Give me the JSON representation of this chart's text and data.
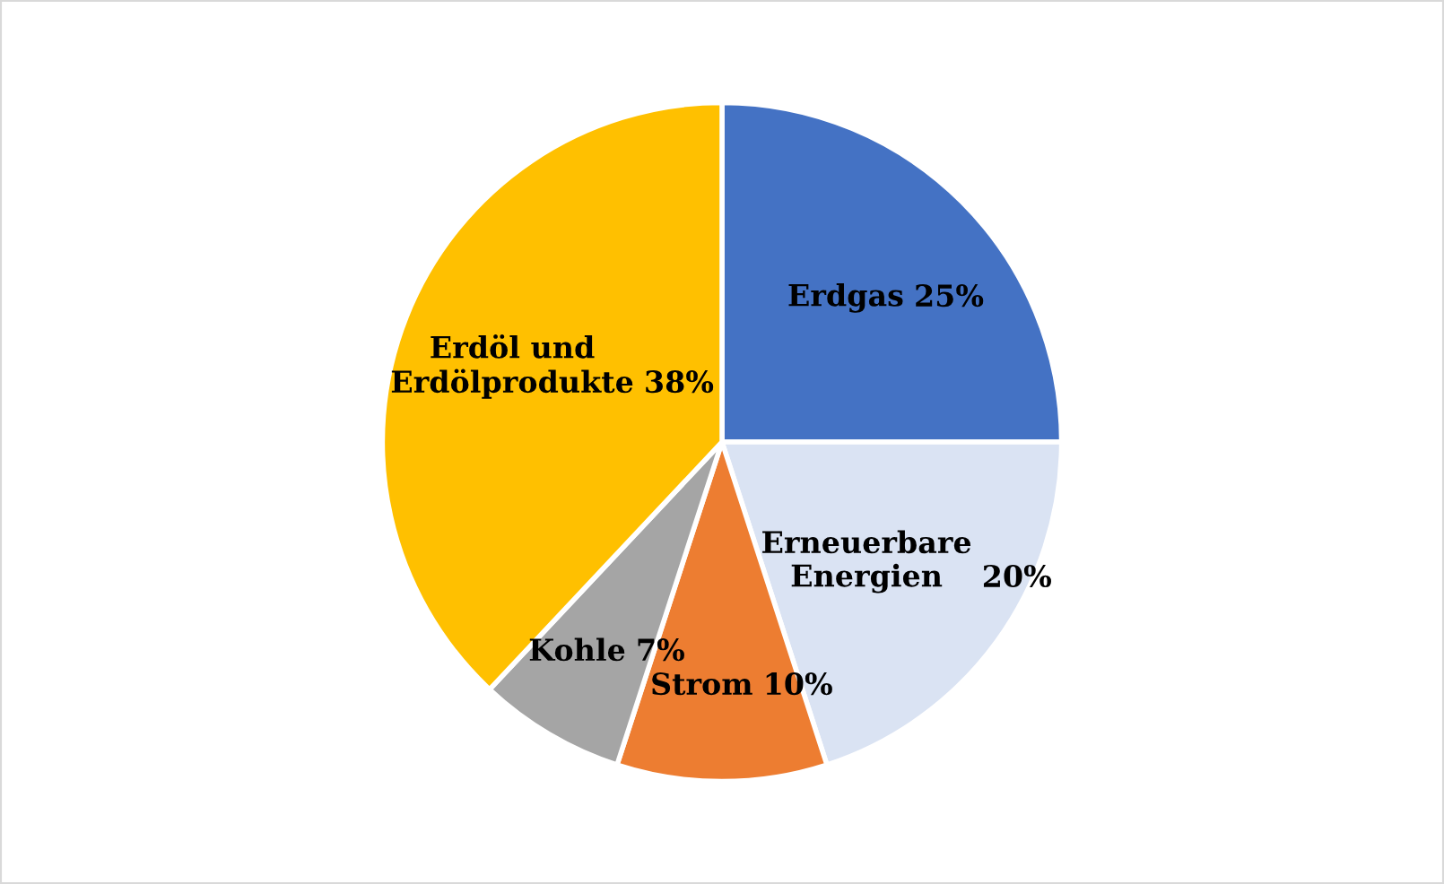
{
  "chart_data": {
    "type": "pie",
    "categories": [
      "Erdgas",
      "Erneuerbare\nEnergien",
      "Strom",
      "Kohle",
      "Erdöl und\nErdölprodukte"
    ],
    "values": [
      25,
      20,
      10,
      7,
      38
    ],
    "value_labels": [
      "25%",
      "20%",
      "10%",
      "7%",
      "38%"
    ],
    "colors": [
      "#4472c4",
      "#dae3f3",
      "#ed7d31",
      "#a5a5a5",
      "#ffc000"
    ]
  }
}
